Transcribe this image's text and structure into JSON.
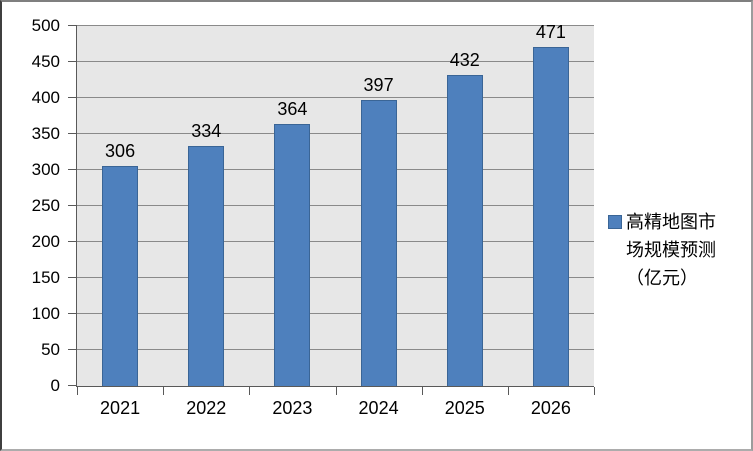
{
  "chart_data": {
    "type": "bar",
    "title": "",
    "categories": [
      "2021",
      "2022",
      "2023",
      "2024",
      "2025",
      "2026"
    ],
    "series": [
      {
        "name": "高精地图市场规模预测（亿元）",
        "values": [
          306,
          334,
          364,
          397,
          432,
          471
        ]
      }
    ],
    "data_labels": [
      "306",
      "334",
      "364",
      "397",
      "432",
      "471"
    ],
    "xlabel": "",
    "ylabel": "",
    "ylim": [
      0,
      500
    ],
    "ytick_step": 50,
    "ytick_labels": [
      "0",
      "50",
      "100",
      "150",
      "200",
      "250",
      "300",
      "350",
      "400",
      "450",
      "500"
    ],
    "grid": true,
    "legend_position": "right",
    "colors": {
      "bar_fill": "#4E80BD",
      "bar_border": "#3A6596",
      "plot_bg": "#E7E7E7",
      "gridline": "#8A8A8A",
      "axis": "#595959",
      "text": "#000000",
      "chart_bg": "#FFFFFF"
    }
  },
  "legend": {
    "label": "高精地图市场规模预测（亿元）",
    "marker": "blue-square-icon"
  }
}
